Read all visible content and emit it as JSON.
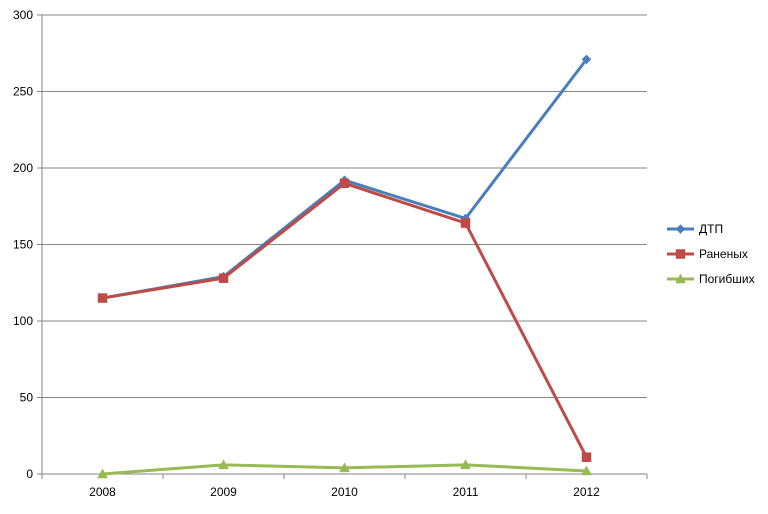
{
  "chart_data": {
    "type": "line",
    "title": "",
    "xlabel": "",
    "ylabel": "",
    "categories": [
      "2008",
      "2009",
      "2010",
      "2011",
      "2012"
    ],
    "ylim": [
      0,
      300
    ],
    "yticks": [
      0,
      50,
      100,
      150,
      200,
      250,
      300
    ],
    "grid": true,
    "legend_position": "right",
    "series": [
      {
        "name": "ДТП",
        "values": [
          115,
          129,
          192,
          167,
          271
        ],
        "color": "#4a7ebb",
        "marker": "diamond"
      },
      {
        "name": "Раненых",
        "values": [
          115,
          128,
          190,
          164,
          11
        ],
        "color": "#be4b48",
        "marker": "square"
      },
      {
        "name": "Погибших",
        "values": [
          0,
          6,
          4,
          6,
          2
        ],
        "color": "#98b954",
        "marker": "triangle"
      }
    ]
  }
}
